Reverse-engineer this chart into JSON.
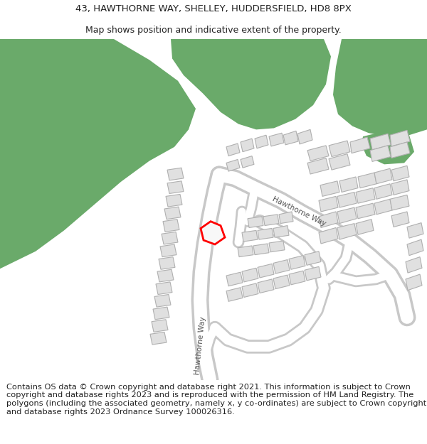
{
  "title_line1": "43, HAWTHORNE WAY, SHELLEY, HUDDERSFIELD, HD8 8PX",
  "title_line2": "Map shows position and indicative extent of the property.",
  "footer_text": "Contains OS data © Crown copyright and database right 2021. This information is subject to Crown copyright and database rights 2023 and is reproduced with the permission of HM Land Registry. The polygons (including the associated geometry, namely x, y co-ordinates) are subject to Crown copyright and database rights 2023 Ordnance Survey 100026316.",
  "bg_color": "#ffffff",
  "green_color": "#6aaa6a",
  "building_fill": "#e0e0e0",
  "building_edge": "#b0b0b0",
  "road_outer": "#c8c8c8",
  "road_inner": "#ffffff",
  "highlight_color": "#ff0000",
  "text_color": "#222222",
  "road_label_color": "#555555",
  "title_fontsize": 9.5,
  "subtitle_fontsize": 9.0,
  "footer_fontsize": 8.2,
  "map_label_fontsize": 7.5
}
